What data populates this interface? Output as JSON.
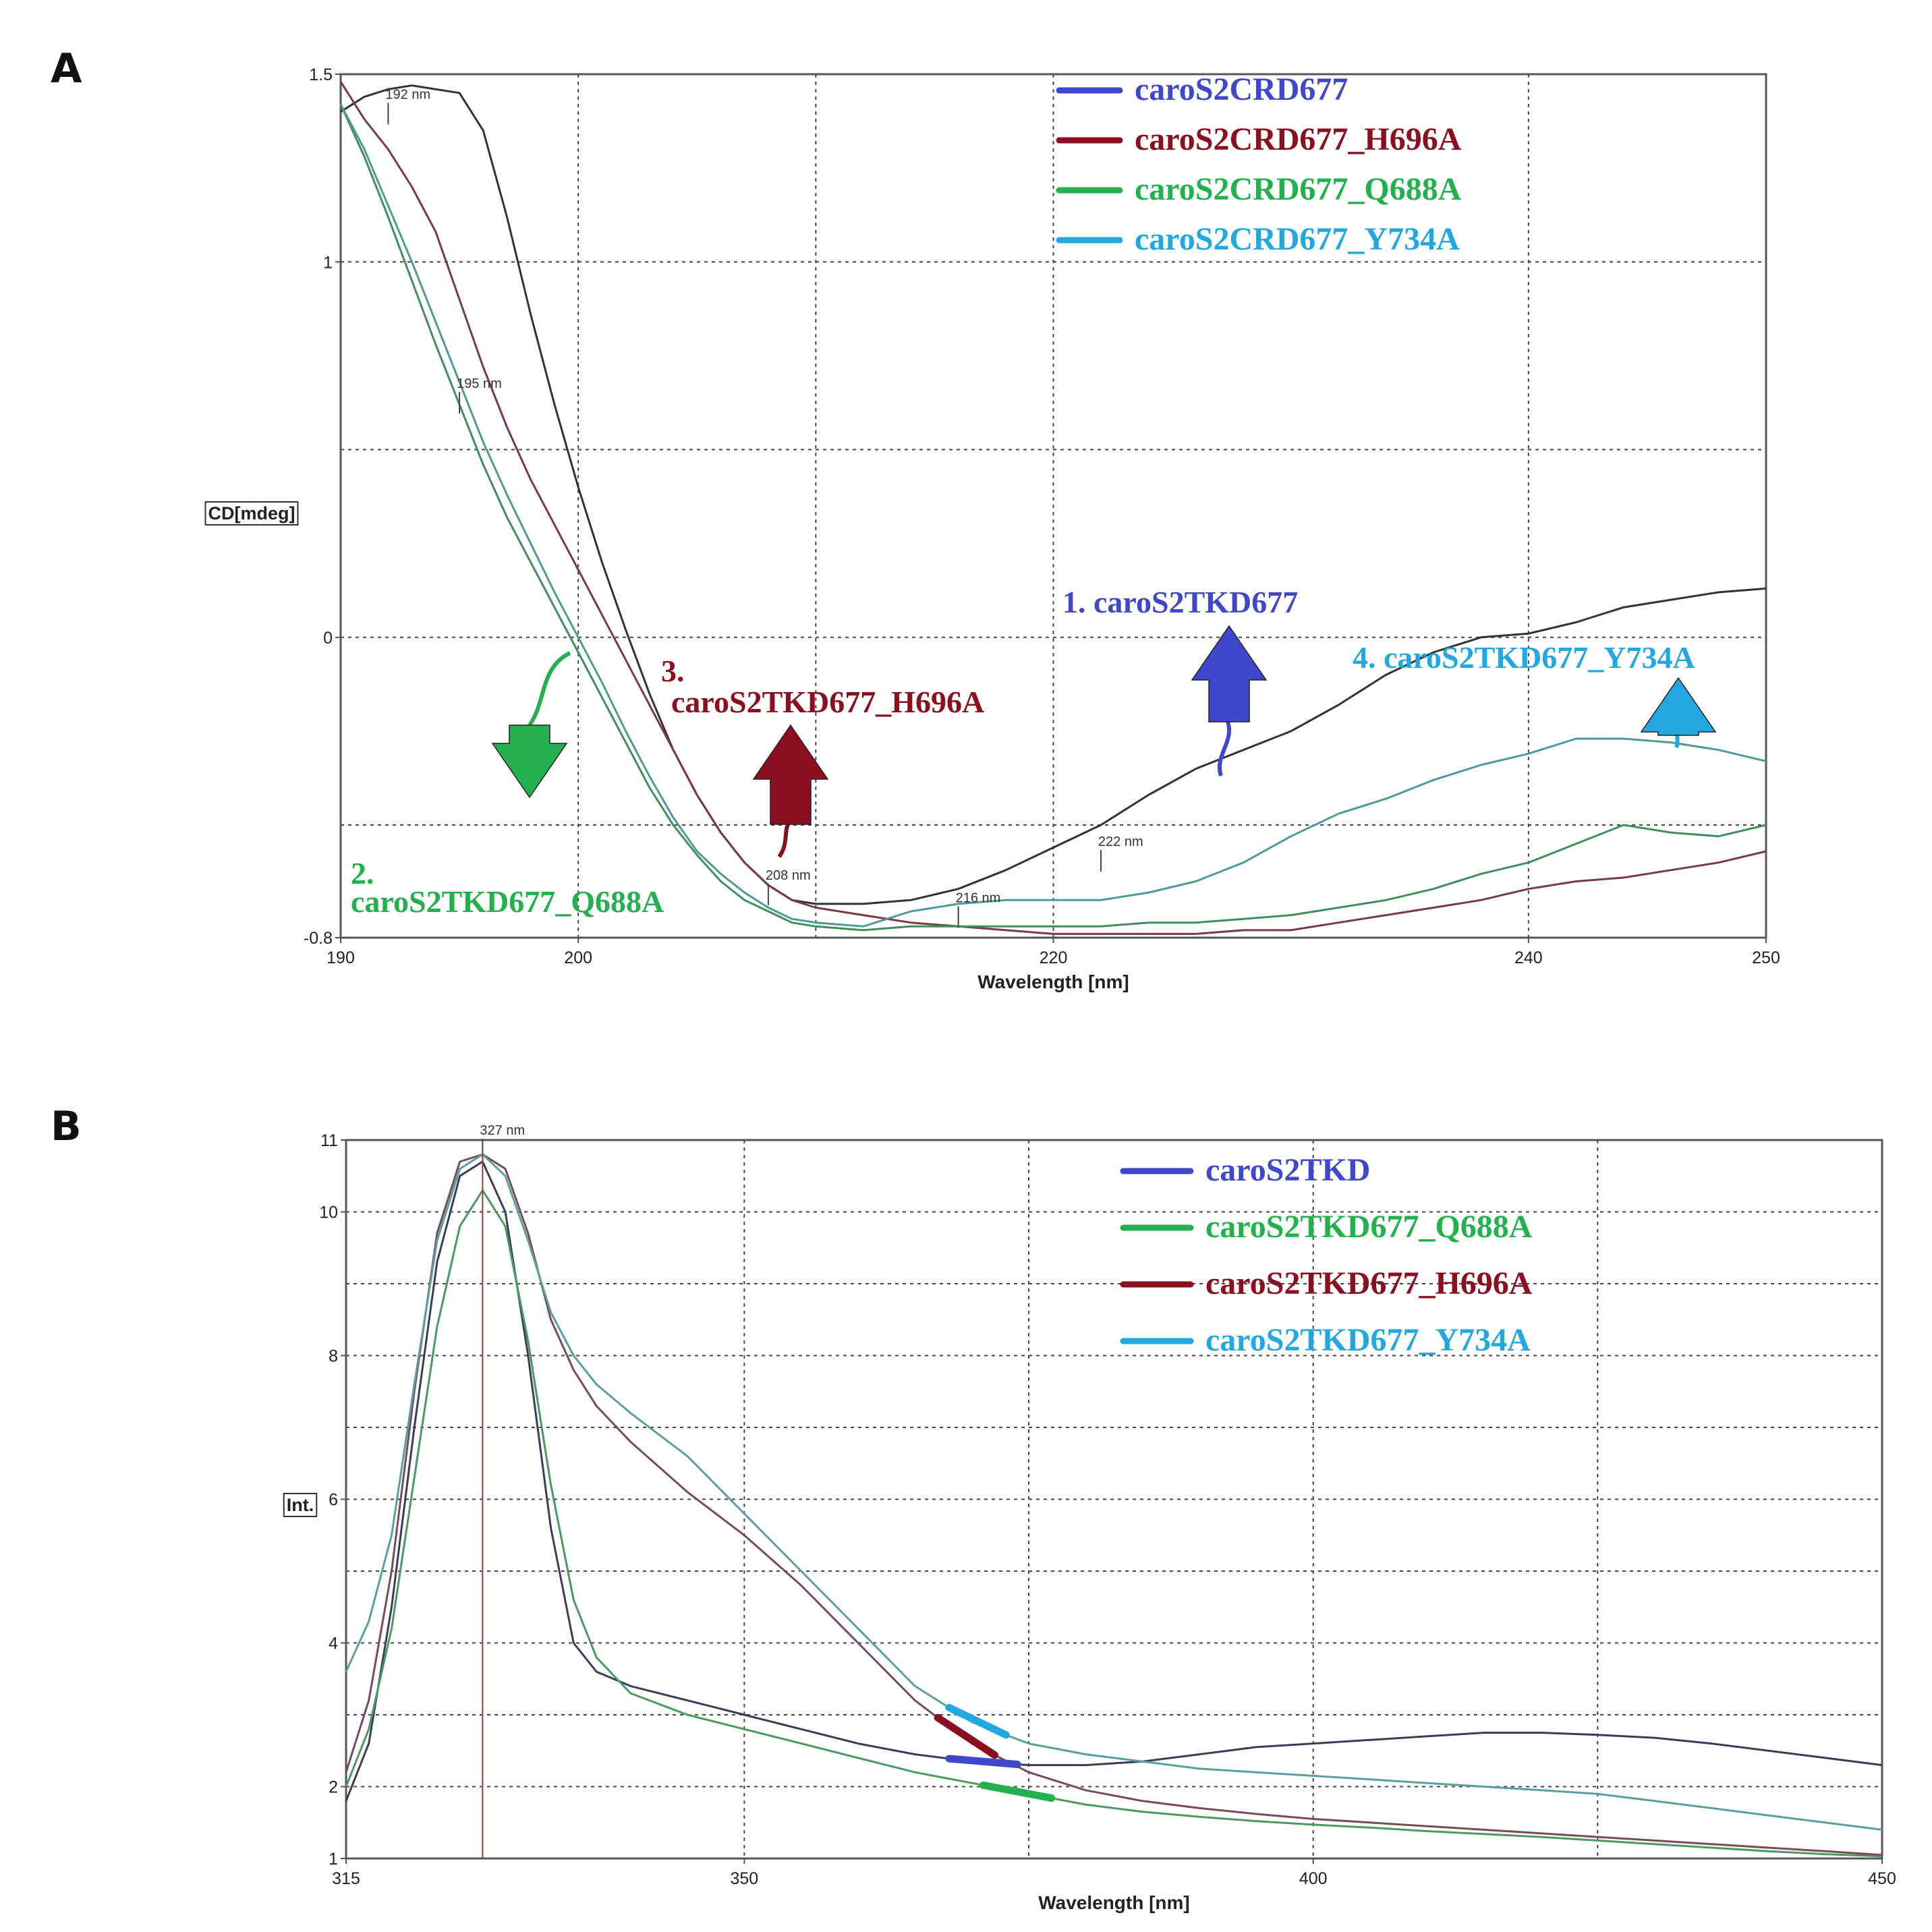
{
  "chart_data": [
    {
      "panel": "A",
      "type": "line",
      "xlabel": "Wavelength [nm]",
      "ylabel": "CD[mdeg]",
      "xlim": [
        190,
        250
      ],
      "ylim": [
        -0.8,
        1.5
      ],
      "x_ticks": [
        {
          "value": 190,
          "label": "190"
        },
        {
          "value": 200,
          "label": "200"
        },
        {
          "value": 220,
          "label": "220"
        },
        {
          "value": 240,
          "label": "240"
        },
        {
          "value": 250,
          "label": "250"
        }
      ],
      "y_ticks": [
        {
          "value": 1.5,
          "label": "1.5"
        },
        {
          "value": 1,
          "label": "1"
        },
        {
          "value": 0,
          "label": "0"
        },
        {
          "value": -0.8,
          "label": "-0.8"
        }
      ],
      "x_grid": [
        200,
        210,
        220,
        240
      ],
      "y_grid": [
        1,
        0.5,
        0,
        -0.5
      ],
      "legend": [
        {
          "label": "caroS2CRD677",
          "color": "#3f48cc"
        },
        {
          "label": "caroS2CRD677_H696A",
          "color": "#8b0f1f"
        },
        {
          "label": "caroS2CRD677_Q688A",
          "color": "#22b14c"
        },
        {
          "label": "caroS2CRD677_Y734A",
          "color": "#22a7e0"
        }
      ],
      "series": [
        {
          "name": "caroS2TKD677",
          "color": "#333333",
          "x": [
            190,
            191,
            192,
            193,
            194,
            195,
            196,
            197,
            198,
            199,
            200,
            201,
            202,
            203,
            204,
            205,
            206,
            207,
            208,
            209,
            210,
            212,
            214,
            216,
            218,
            220,
            222,
            224,
            226,
            228,
            230,
            232,
            234,
            236,
            238,
            240,
            242,
            244,
            246,
            248,
            250
          ],
          "y": [
            1.4,
            1.44,
            1.46,
            1.47,
            1.46,
            1.45,
            1.35,
            1.12,
            0.86,
            0.62,
            0.4,
            0.2,
            0.02,
            -0.15,
            -0.3,
            -0.42,
            -0.52,
            -0.6,
            -0.66,
            -0.7,
            -0.71,
            -0.71,
            -0.7,
            -0.67,
            -0.62,
            -0.56,
            -0.5,
            -0.42,
            -0.35,
            -0.3,
            -0.25,
            -0.18,
            -0.1,
            -0.04,
            0.0,
            0.01,
            0.04,
            0.08,
            0.1,
            0.12,
            0.13
          ]
        },
        {
          "name": "caroS2TKD677_H696A",
          "color": "#7a3a45",
          "x": [
            190,
            191,
            192,
            193,
            194,
            195,
            196,
            197,
            198,
            199,
            200,
            201,
            202,
            203,
            204,
            205,
            206,
            207,
            208,
            209,
            210,
            212,
            214,
            216,
            218,
            220,
            222,
            224,
            226,
            228,
            230,
            232,
            234,
            236,
            238,
            240,
            242,
            244,
            246,
            248,
            250
          ],
          "y": [
            1.48,
            1.38,
            1.3,
            1.2,
            1.08,
            0.9,
            0.72,
            0.56,
            0.42,
            0.3,
            0.18,
            0.06,
            -0.06,
            -0.18,
            -0.3,
            -0.42,
            -0.52,
            -0.6,
            -0.66,
            -0.7,
            -0.72,
            -0.74,
            -0.76,
            -0.77,
            -0.78,
            -0.79,
            -0.79,
            -0.79,
            -0.79,
            -0.78,
            -0.78,
            -0.76,
            -0.74,
            -0.72,
            -0.7,
            -0.67,
            -0.65,
            -0.64,
            -0.62,
            -0.6,
            -0.57
          ]
        },
        {
          "name": "caroS2TKD677_Q688A",
          "color": "#3f8f5c",
          "x": [
            190,
            191,
            192,
            193,
            194,
            195,
            196,
            197,
            198,
            199,
            200,
            201,
            202,
            203,
            204,
            205,
            206,
            207,
            208,
            209,
            210,
            212,
            214,
            216,
            218,
            220,
            222,
            224,
            226,
            228,
            230,
            232,
            234,
            236,
            238,
            240,
            242,
            244,
            246,
            248,
            250
          ],
          "y": [
            1.42,
            1.28,
            1.12,
            0.95,
            0.78,
            0.62,
            0.46,
            0.32,
            0.2,
            0.08,
            -0.04,
            -0.16,
            -0.28,
            -0.4,
            -0.5,
            -0.58,
            -0.65,
            -0.7,
            -0.73,
            -0.76,
            -0.77,
            -0.78,
            -0.77,
            -0.77,
            -0.77,
            -0.77,
            -0.77,
            -0.76,
            -0.76,
            -0.75,
            -0.74,
            -0.72,
            -0.7,
            -0.67,
            -0.63,
            -0.6,
            -0.55,
            -0.5,
            -0.52,
            -0.53,
            -0.5
          ]
        },
        {
          "name": "caroS2TKD677_Y734A",
          "color": "#4c9a9a",
          "x": [
            190,
            191,
            192,
            193,
            194,
            195,
            196,
            197,
            198,
            199,
            200,
            201,
            202,
            203,
            204,
            205,
            206,
            207,
            208,
            209,
            210,
            212,
            214,
            216,
            218,
            220,
            222,
            224,
            226,
            228,
            230,
            232,
            234,
            236,
            238,
            240,
            242,
            244,
            246,
            248,
            250
          ],
          "y": [
            1.42,
            1.3,
            1.15,
            1.0,
            0.84,
            0.68,
            0.52,
            0.38,
            0.25,
            0.12,
            0.0,
            -0.12,
            -0.25,
            -0.37,
            -0.48,
            -0.57,
            -0.63,
            -0.68,
            -0.72,
            -0.75,
            -0.76,
            -0.77,
            -0.73,
            -0.71,
            -0.7,
            -0.7,
            -0.7,
            -0.68,
            -0.65,
            -0.6,
            -0.53,
            -0.47,
            -0.43,
            -0.38,
            -0.34,
            -0.31,
            -0.27,
            -0.27,
            -0.28,
            -0.3,
            -0.33
          ]
        }
      ],
      "peak_labels": [
        {
          "label": "192 nm",
          "x": 192,
          "y": 1.42
        },
        {
          "label": "195 nm",
          "x": 195,
          "y": 0.65
        },
        {
          "label": "208 nm",
          "x": 208,
          "y": -0.66
        },
        {
          "label": "216 nm",
          "x": 216,
          "y": -0.72
        },
        {
          "label": "222 nm",
          "x": 222,
          "y": -0.57
        }
      ],
      "annotations": [
        {
          "label": "1. caroS2TKD677",
          "color": "#3f48cc"
        },
        {
          "label": "2.",
          "color": "#22b14c"
        },
        {
          "label": "caroS2TKD677_Q688A",
          "color": "#22b14c"
        },
        {
          "label": "3.",
          "color": "#8b0f1f"
        },
        {
          "label": "caroS2TKD677_H696A",
          "color": "#8b0f1f"
        },
        {
          "label": "4. caroS2TKD677_Y734A",
          "color": "#22a7e0"
        }
      ]
    },
    {
      "panel": "B",
      "type": "line",
      "xlabel": "Wavelength [nm]",
      "ylabel": "Int.",
      "xlim": [
        315,
        450
      ],
      "ylim": [
        1,
        11
      ],
      "x_ticks": [
        {
          "value": 315,
          "label": "315"
        },
        {
          "value": 350,
          "label": "350"
        },
        {
          "value": 400,
          "label": "400"
        },
        {
          "value": 450,
          "label": "450"
        }
      ],
      "y_ticks": [
        {
          "value": 11,
          "label": "11"
        },
        {
          "value": 10,
          "label": "10"
        },
        {
          "value": 8,
          "label": "8"
        },
        {
          "value": 6,
          "label": "6"
        },
        {
          "value": 4,
          "label": "4"
        },
        {
          "value": 2,
          "label": "2"
        },
        {
          "value": 1,
          "label": "1"
        }
      ],
      "x_grid": [
        350,
        375,
        400,
        425
      ],
      "y_grid": [
        10,
        9,
        8,
        7,
        6,
        5,
        4,
        3,
        2
      ],
      "legend": [
        {
          "label": "caroS2TKD",
          "color": "#3f48cc"
        },
        {
          "label": "caroS2TKD677_Q688A",
          "color": "#22b14c"
        },
        {
          "label": "caroS2TKD677_H696A",
          "color": "#8b0f1f"
        },
        {
          "label": "caroS2TKD677_Y734A",
          "color": "#22a7e0"
        }
      ],
      "series": [
        {
          "name": "caroS2TKD",
          "color": "#3c3c5a",
          "x": [
            315,
            317,
            319,
            321,
            323,
            325,
            327,
            329,
            331,
            333,
            335,
            337,
            340,
            345,
            350,
            355,
            360,
            365,
            370,
            375,
            380,
            385,
            390,
            395,
            400,
            405,
            410,
            415,
            420,
            425,
            430,
            435,
            440,
            445,
            450
          ],
          "y": [
            1.8,
            2.6,
            4.5,
            7.0,
            9.3,
            10.5,
            10.7,
            10.0,
            8.0,
            5.6,
            4.0,
            3.6,
            3.4,
            3.2,
            3.0,
            2.8,
            2.6,
            2.45,
            2.35,
            2.3,
            2.3,
            2.35,
            2.45,
            2.55,
            2.6,
            2.65,
            2.7,
            2.75,
            2.75,
            2.72,
            2.68,
            2.6,
            2.5,
            2.4,
            2.3
          ]
        },
        {
          "name": "caroS2TKD677_Q688A",
          "color": "#4a9a60",
          "x": [
            315,
            317,
            319,
            321,
            323,
            325,
            327,
            329,
            331,
            333,
            335,
            337,
            340,
            345,
            350,
            355,
            360,
            365,
            370,
            375,
            380,
            385,
            390,
            395,
            400,
            405,
            410,
            415,
            420,
            425,
            430,
            435,
            440,
            445,
            450
          ],
          "y": [
            2.0,
            2.8,
            4.2,
            6.3,
            8.4,
            9.8,
            10.3,
            9.8,
            8.2,
            6.2,
            4.6,
            3.8,
            3.3,
            3.0,
            2.8,
            2.6,
            2.4,
            2.2,
            2.05,
            1.9,
            1.75,
            1.65,
            1.58,
            1.52,
            1.47,
            1.43,
            1.38,
            1.34,
            1.3,
            1.25,
            1.2,
            1.15,
            1.1,
            1.06,
            1.03
          ]
        },
        {
          "name": "caroS2TKD677_H696A",
          "color": "#7a4a55",
          "x": [
            315,
            317,
            319,
            321,
            323,
            325,
            327,
            329,
            331,
            333,
            335,
            337,
            340,
            345,
            350,
            355,
            360,
            365,
            370,
            375,
            380,
            385,
            390,
            395,
            400,
            405,
            410,
            415,
            420,
            425,
            430,
            435,
            440,
            445,
            450
          ],
          "y": [
            2.2,
            3.2,
            5.0,
            7.5,
            9.7,
            10.7,
            10.8,
            10.6,
            9.7,
            8.5,
            7.8,
            7.3,
            6.8,
            6.1,
            5.5,
            4.8,
            4.0,
            3.2,
            2.6,
            2.2,
            1.95,
            1.8,
            1.7,
            1.62,
            1.55,
            1.5,
            1.45,
            1.4,
            1.35,
            1.3,
            1.25,
            1.2,
            1.15,
            1.1,
            1.05
          ]
        },
        {
          "name": "caroS2TKD677_Y734A",
          "color": "#5a9fa0",
          "x": [
            315,
            317,
            319,
            321,
            323,
            325,
            327,
            329,
            331,
            333,
            335,
            337,
            340,
            345,
            350,
            355,
            360,
            365,
            370,
            375,
            380,
            385,
            390,
            395,
            400,
            405,
            410,
            415,
            420,
            425,
            430,
            435,
            440,
            445,
            450
          ],
          "y": [
            3.6,
            4.3,
            5.5,
            7.6,
            9.6,
            10.6,
            10.8,
            10.5,
            9.6,
            8.6,
            8.0,
            7.6,
            7.2,
            6.6,
            5.8,
            5.0,
            4.2,
            3.4,
            2.9,
            2.6,
            2.45,
            2.35,
            2.25,
            2.2,
            2.15,
            2.1,
            2.05,
            2.0,
            1.95,
            1.9,
            1.8,
            1.7,
            1.6,
            1.5,
            1.4
          ]
        }
      ],
      "peak_labels": [
        {
          "label": "327 nm",
          "x": 327,
          "y": 11
        }
      ],
      "peak_marker_x": 327,
      "series_markers": [
        {
          "series": "caroS2TKD677_Y734A",
          "color": "#22a7e0",
          "x0": 368,
          "x1": 373
        },
        {
          "series": "caroS2TKD677_H696A",
          "color": "#8b0f1f",
          "x0": 367,
          "x1": 372
        },
        {
          "series": "caroS2TKD",
          "color": "#3f48cc",
          "x0": 368,
          "x1": 374
        },
        {
          "series": "caroS2TKD677_Q688A",
          "color": "#22b14c",
          "x0": 371,
          "x1": 377
        }
      ]
    }
  ],
  "panels": {
    "a_label": "A",
    "b_label": "B"
  }
}
